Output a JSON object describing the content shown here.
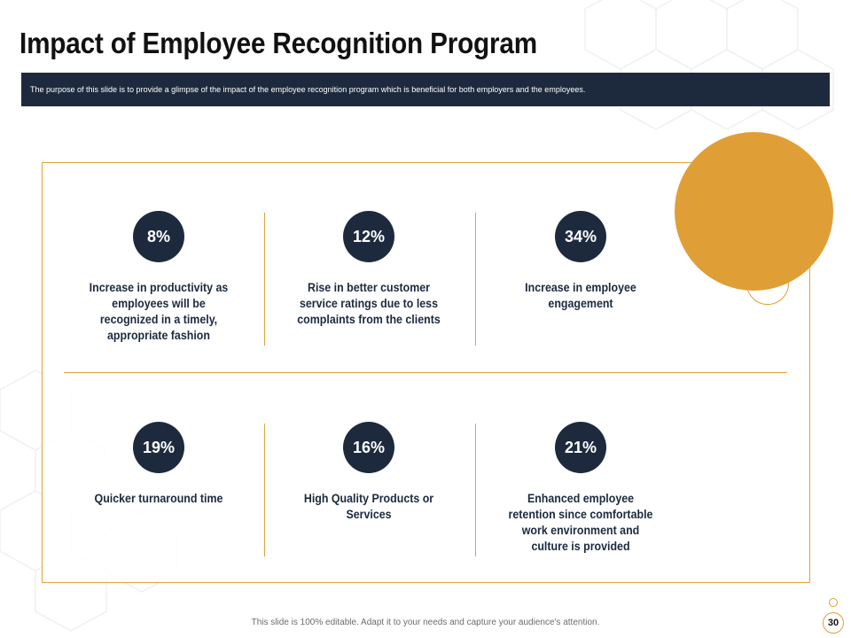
{
  "slide": {
    "title": "Impact of Employee Recognition Program",
    "subtitle": "The purpose of this slide is to provide a glimpse of the impact of the employee recognition program which is beneficial for both employers and the employees.",
    "footer_note": "This slide is 100% editable. Adapt it to your needs and capture your audience's attention.",
    "page_number": "30"
  },
  "stats": [
    {
      "value": "8%",
      "label": "Increase in productivity as employees will be recognized in a timely, appropriate fashion"
    },
    {
      "value": "12%",
      "label": "Rise in better customer service ratings due to less complaints from the clients"
    },
    {
      "value": "34%",
      "label": "Increase in employee engagement"
    },
    {
      "value": "19%",
      "label": "Quicker turnaround time"
    },
    {
      "value": "16%",
      "label": "High Quality Products or Services"
    },
    {
      "value": "21%",
      "label": "Enhanced employee retention since comfortable work environment and culture is provided"
    }
  ],
  "colors": {
    "accent": "#e09e36",
    "navy": "#1d2a3e"
  }
}
